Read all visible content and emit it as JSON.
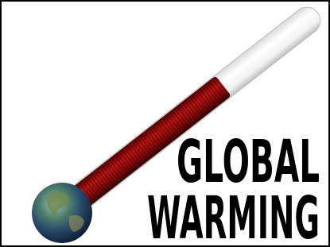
{
  "title": {
    "line1": "GLOBAL",
    "line2": "WARMING"
  }
}
